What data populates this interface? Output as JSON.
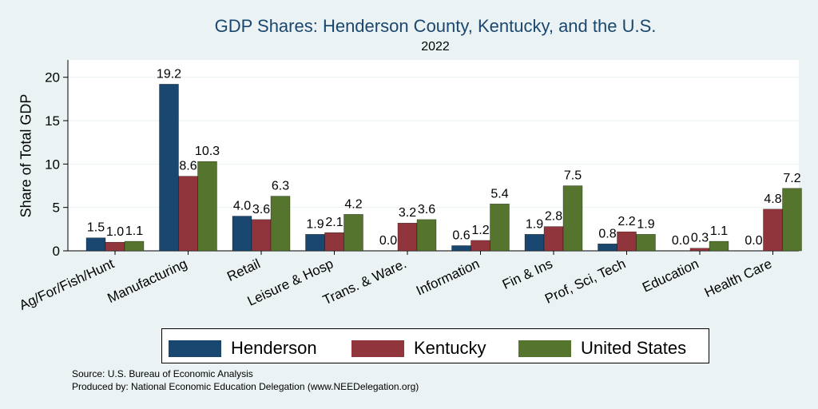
{
  "chart_data": {
    "type": "bar",
    "title": "GDP Shares: Henderson County, Kentucky, and the U.S.",
    "subtitle": "2022",
    "ylabel": "Share of Total GDP",
    "ylim": [
      0,
      22
    ],
    "yticks": [
      0,
      5,
      10,
      15,
      20
    ],
    "grid": true,
    "legend_position": "bottom",
    "categories": [
      "Ag/For/Fish/Hunt",
      "Manufacturing",
      "Retail",
      "Leisure & Hosp",
      "Trans. & Ware.",
      "Information",
      "Fin & Ins",
      "Prof, Sci, Tech",
      "Education",
      "Health Care"
    ],
    "series": [
      {
        "name": "Henderson",
        "color": "#1a476f",
        "values": [
          1.5,
          19.2,
          4.0,
          1.9,
          0.0,
          0.6,
          1.9,
          0.8,
          0.0,
          0.0
        ]
      },
      {
        "name": "Kentucky",
        "color": "#90353b",
        "values": [
          1.0,
          8.6,
          3.6,
          2.1,
          3.2,
          1.2,
          2.8,
          2.2,
          0.3,
          4.8
        ]
      },
      {
        "name": "United States",
        "color": "#55752f",
        "values": [
          1.1,
          10.3,
          6.3,
          4.2,
          3.6,
          5.4,
          7.5,
          1.9,
          1.1,
          7.2
        ]
      }
    ]
  },
  "footer": {
    "source": "Source: U.S. Bureau of Economic Analysis",
    "produced_by": "Produced by: National Economic Education Delegation (www.NEEDelegation.org)"
  }
}
